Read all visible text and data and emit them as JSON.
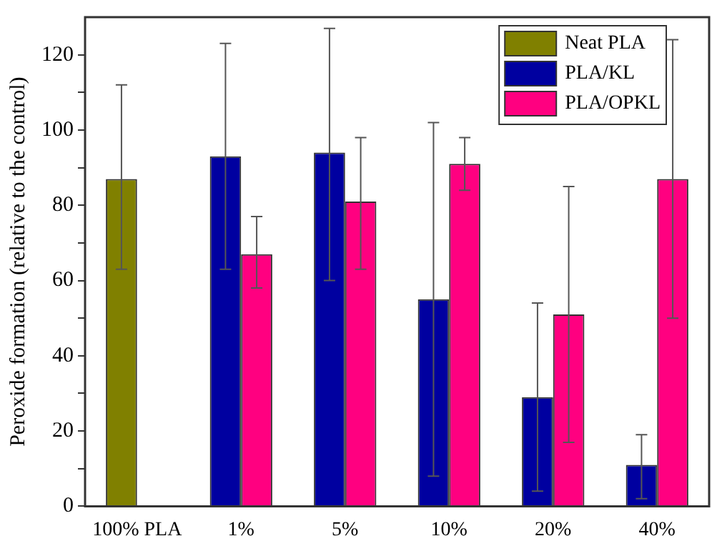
{
  "chart_data": {
    "type": "bar",
    "ylabel": "Peroxide formation (relative to the control)",
    "categories": [
      "100% PLA",
      "1%",
      "5%",
      "10%",
      "20%",
      "40%"
    ],
    "series": [
      {
        "name": "Neat PLA",
        "color": "#808000",
        "values": [
          87,
          null,
          null,
          null,
          null,
          null
        ],
        "errors": [
          [
            63,
            112
          ],
          null,
          null,
          null,
          null,
          null
        ]
      },
      {
        "name": "PLA/KL",
        "color": "#0000a0",
        "values": [
          null,
          93,
          94,
          55,
          29,
          11
        ],
        "errors": [
          null,
          [
            63,
            123
          ],
          [
            60,
            127
          ],
          [
            8,
            102
          ],
          [
            4,
            54
          ],
          [
            2,
            19
          ]
        ]
      },
      {
        "name": "PLA/OPKL",
        "color": "#ff0080",
        "values": [
          null,
          67,
          81,
          91,
          51,
          87
        ],
        "errors": [
          null,
          [
            58,
            77
          ],
          [
            63,
            98
          ],
          [
            84,
            98
          ],
          [
            17,
            85
          ],
          [
            50,
            124
          ]
        ]
      }
    ],
    "ylim": [
      0,
      130
    ],
    "yticks": [
      0,
      {
        "value": 10,
        "label": null
      },
      20,
      {
        "value": 30,
        "label": null
      },
      40,
      {
        "value": 50,
        "label": null
      },
      60,
      {
        "value": 70,
        "label": null
      },
      80,
      {
        "value": 90,
        "label": null
      },
      100,
      {
        "value": 110,
        "label": null
      },
      120
    ],
    "legend": "top right",
    "grid": false
  }
}
